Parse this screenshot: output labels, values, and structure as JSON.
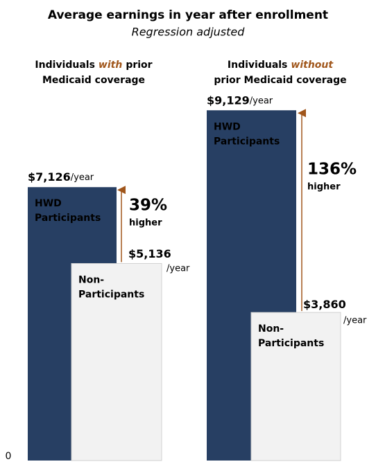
{
  "title": "Average earnings in year after enrollment",
  "subtitle": "Regression adjusted",
  "chart_data": [
    {
      "type": "bar",
      "title_lines": [
        [
          {
            "text": "Individuals"
          },
          {
            "text": "with",
            "emphasis": true
          },
          {
            "text": "prior"
          }
        ],
        [
          {
            "text": "Medicaid coverage"
          }
        ]
      ],
      "categories": [
        [
          "HWD",
          "Participants"
        ],
        [
          "Non-",
          "Participants"
        ]
      ],
      "values": [
        7126,
        5136
      ],
      "value_labels": [
        "$7,126",
        "$5,136"
      ],
      "unit_label": "/year",
      "colors": [
        "#273f63",
        "#f2f2f2"
      ],
      "annotation": {
        "value_label": "39%",
        "text": "higher"
      },
      "ylim": [
        0,
        10000
      ],
      "yticks": [
        0
      ]
    },
    {
      "type": "bar",
      "title_lines": [
        [
          {
            "text": "Individuals"
          },
          {
            "text": "without",
            "emphasis": true
          }
        ],
        [
          {
            "text": "prior Medicaid coverage"
          }
        ]
      ],
      "categories": [
        [
          "HWD",
          "Participants"
        ],
        [
          "Non-",
          "Participants"
        ]
      ],
      "values": [
        9129,
        3860
      ],
      "value_labels": [
        "$9,129",
        "$3,860"
      ],
      "unit_label": "/year",
      "colors": [
        "#273f63",
        "#f2f2f2"
      ],
      "annotation": {
        "value_label": "136%",
        "text": "higher"
      },
      "ylim": [
        0,
        10000
      ]
    }
  ]
}
